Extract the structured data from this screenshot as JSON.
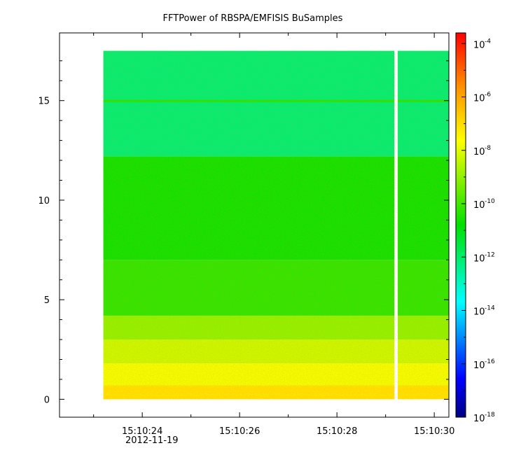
{
  "chart_data": {
    "type": "heatmap",
    "title": "FFTPower of RBSPA/EMFISIS  BuSamples",
    "xlabel": "",
    "ylabel": "",
    "x_axis": {
      "ticks": [
        "15:10:24",
        "15:10:26",
        "15:10:28",
        "15:10:30"
      ],
      "tick_seconds": [
        24,
        26,
        28,
        30
      ],
      "range_seconds": [
        22.3,
        30.3
      ],
      "date_label": "2012-11-19"
    },
    "y_axis": {
      "ticks": [
        "0",
        "5",
        "10",
        "15"
      ],
      "tick_values": [
        0,
        5,
        10,
        15
      ],
      "range": [
        -0.9,
        18.4
      ]
    },
    "data_extent": {
      "x_seconds": [
        23.2,
        30.3
      ],
      "y": [
        0,
        17.5
      ],
      "gap_seconds": [
        29.18,
        29.25
      ]
    },
    "colorbar": {
      "scale": "log",
      "range": [
        -18,
        -3.6
      ],
      "tick_base": "10",
      "tick_exponents": [
        "-4",
        "-6",
        "-8",
        "-10",
        "-12",
        "-14",
        "-16",
        "-18"
      ],
      "tick_values": [
        -4,
        -6,
        -8,
        -10,
        -12,
        -14,
        -16,
        -18
      ],
      "colors": [
        "#00008b",
        "#0000ff",
        "#00ffff",
        "#00ff00",
        "#ffff00",
        "#ff0000"
      ]
    },
    "frequency_bands": [
      {
        "y_range": [
          0,
          0.7
        ],
        "log_power": -7.1
      },
      {
        "y_range": [
          0.7,
          1.8
        ],
        "log_power": -7.8
      },
      {
        "y_range": [
          1.8,
          3.0
        ],
        "log_power": -8.3
      },
      {
        "y_range": [
          3.0,
          4.2
        ],
        "log_power": -9.0
      },
      {
        "y_range": [
          4.2,
          7.0
        ],
        "log_power": -10.2
      },
      {
        "y_range": [
          7.0,
          12.2
        ],
        "log_power": -10.6
      },
      {
        "y_range": [
          12.2,
          17.5
        ],
        "log_power": -12.1
      }
    ],
    "lines": [
      {
        "y": 15.0,
        "log_power": -10.3
      }
    ]
  }
}
